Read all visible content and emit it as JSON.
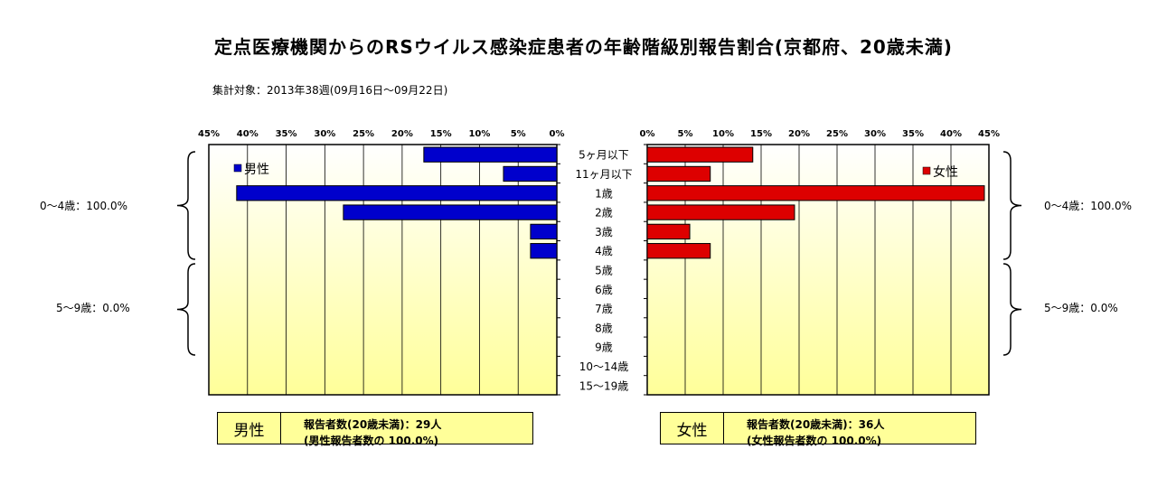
{
  "title": "定点医療機関からのRSウイルス感染症患者の年齢階級別報告割合(京都府、20歳未満)",
  "subtitle": "集計対象：2013年38週(09月16日〜09月22日)",
  "chart_data": {
    "type": "bar",
    "orientation": "horizontal-pyramid",
    "categories": [
      "5ヶ月以下",
      "11ヶ月以下",
      "1歳",
      "2歳",
      "3歳",
      "4歳",
      "5歳",
      "6歳",
      "7歳",
      "8歳",
      "9歳",
      "10〜14歳",
      "15〜19歳"
    ],
    "series": [
      {
        "name": "男性",
        "color": "#0000cc",
        "values": [
          17.2,
          6.9,
          41.4,
          27.6,
          3.4,
          3.4,
          0,
          0,
          0,
          0,
          0,
          0,
          0
        ]
      },
      {
        "name": "女性",
        "color": "#dd0000",
        "values": [
          13.9,
          8.3,
          44.4,
          19.4,
          5.6,
          8.3,
          0,
          0,
          0,
          0,
          0,
          0,
          0
        ]
      }
    ],
    "xlim": [
      0,
      45
    ],
    "tick_labels": [
      "0%",
      "5%",
      "10%",
      "15%",
      "20%",
      "25%",
      "30%",
      "35%",
      "40%",
      "45%"
    ],
    "legend_placement": "inside-top",
    "group_labels": {
      "male": [
        "0〜4歳：100.0%",
        "5〜9歳：0.0%"
      ],
      "female": [
        "0〜4歳：100.0%",
        "5〜9歳：0.0%"
      ]
    }
  },
  "summary": {
    "male": {
      "sex": "男性",
      "line1": "報告者数(20歳未満)：29人",
      "line2": "(男性報告者数の 100.0%)"
    },
    "female": {
      "sex": "女性",
      "line1": "報告者数(20歳未満)：36人",
      "line2": "(女性報告者数の 100.0%)"
    }
  }
}
